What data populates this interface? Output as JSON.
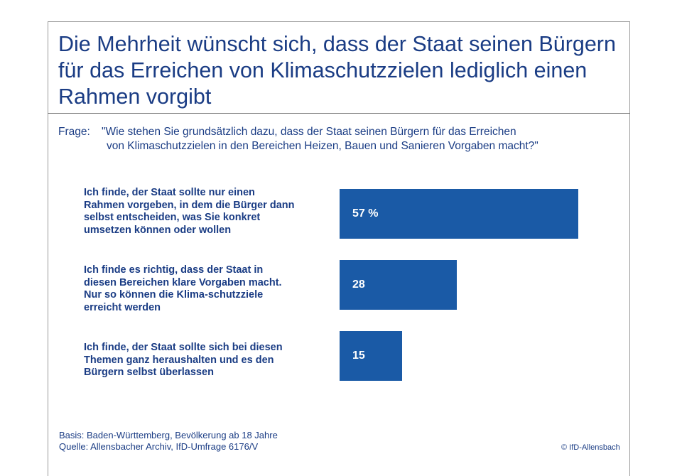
{
  "title": "Die Mehrheit wünscht sich, dass der Staat seinen Bürgern für das Erreichen von Klimaschutzzielen lediglich einen Rahmen vorgibt",
  "question": {
    "prefix": "Frage:",
    "line1": "\"Wie stehen Sie grundsätzlich dazu, dass der Staat seinen Bürgern für das Erreichen",
    "line2": "von Klimaschutzzielen in den Bereichen Heizen, Bauen und Sanieren Vorgaben macht?\""
  },
  "chart_data": {
    "type": "bar",
    "orientation": "horizontal",
    "categories": [
      "Ich finde, der Staat sollte nur einen Rahmen vorgeben, in dem die Bürger dann selbst entscheiden, was Sie konkret umsetzen können oder wollen",
      "Ich finde es richtig, dass der Staat in diesen Bereichen klare Vorgaben macht. Nur so können die Klima-schutzziele erreicht werden",
      "Ich finde, der Staat sollte sich bei diesen Themen ganz heraushalten und es den Bürgern selbst überlassen"
    ],
    "values": [
      57,
      28,
      15
    ],
    "value_labels": [
      "57 %",
      "28",
      "15"
    ],
    "unit": "%",
    "xlim": [
      0,
      100
    ],
    "grid": false,
    "legend": "none",
    "bar_color": "#1a5aa6"
  },
  "footer": {
    "basis": "Basis: Baden-Württemberg, Bevölkerung ab 18 Jahre",
    "quelle": "Quelle: Allensbacher Archiv, IfD-Umfrage 6176/V",
    "copyright": "© IfD-Allensbach"
  },
  "colors": {
    "text": "#1a3c84",
    "bar": "#1a5aa6"
  }
}
